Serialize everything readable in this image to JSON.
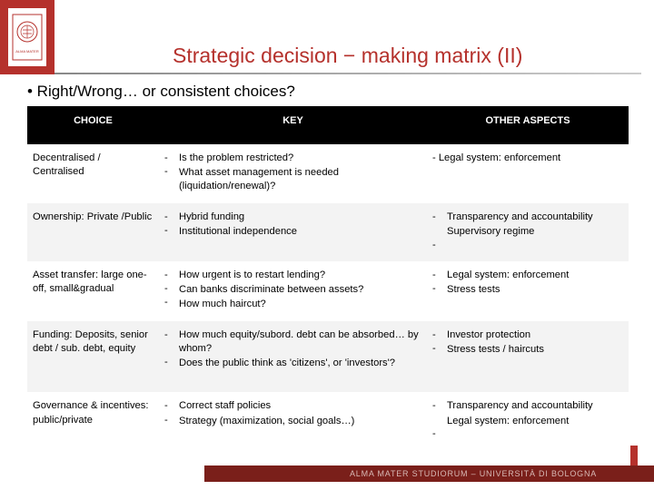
{
  "title": "Strategic decision − making matrix (II)",
  "subtitle": "•   Right/Wrong… or consistent choices?",
  "headers": {
    "c0": "CHOICE",
    "c1": "KEY",
    "c2": "OTHER ASPECTS"
  },
  "rows": [
    {
      "choice": "Decentralised / Centralised",
      "key": [
        "Is the problem restricted?",
        "What asset management is needed (liquidation/renewal)?"
      ],
      "other_plain": "- Legal system: enforcement"
    },
    {
      "choice": "Ownership: Private /Public",
      "key": [
        "Hybrid funding",
        "Institutional independence"
      ],
      "other": [
        "Transparency and accountability",
        "Supervisory regime"
      ]
    },
    {
      "choice": "Asset transfer: large one-off, small&gradual",
      "key": [
        "How urgent is to restart lending?",
        "Can banks discriminate between assets?",
        "How much haircut?"
      ],
      "other": [
        "Legal system: enforcement",
        "Stress tests"
      ]
    },
    {
      "choice": "Funding: Deposits, senior debt / sub. debt, equity",
      "key": [
        "How much equity/subord. debt can be absorbed… by whom?",
        "Does the public think as 'citizens', or 'investors'?"
      ],
      "other": [
        "Investor protection",
        "Stress tests / haircuts"
      ]
    },
    {
      "choice": "Governance & incentives: public/private",
      "key": [
        "Correct staff policies",
        "Strategy (maximization, social goals…)"
      ],
      "other": [
        "Transparency and accountability",
        "Legal system: enforcement"
      ]
    }
  ],
  "footer": "ALMA MATER STUDIORUM ‒ UNIVERSITÀ DI BOLOGNA",
  "colors": {
    "brand": "#b5312c",
    "footer_bg": "#7a1f1a",
    "row_alt": "#f3f3f3"
  }
}
